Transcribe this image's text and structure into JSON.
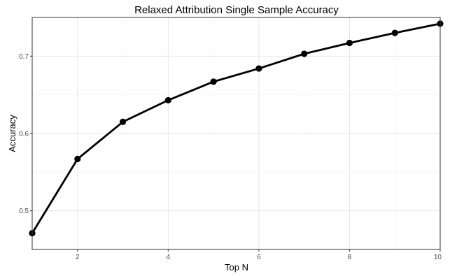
{
  "chart_data": {
    "type": "line",
    "title": "Relaxed Attribution Single Sample Accuracy",
    "xlabel": "Top N",
    "ylabel": "Accuracy",
    "x": [
      1,
      2,
      3,
      4,
      5,
      6,
      7,
      8,
      9,
      10
    ],
    "series": [
      {
        "values": [
          0.471,
          0.567,
          0.615,
          0.643,
          0.667,
          0.684,
          0.703,
          0.717,
          0.73,
          0.742
        ]
      }
    ],
    "xlim": [
      1,
      10
    ],
    "ylim": [
      0.45,
      0.75
    ],
    "xticks": [
      2,
      4,
      6,
      8,
      10
    ],
    "yticks": [
      0.5,
      0.6,
      0.7
    ],
    "xtick_labels": [
      "2",
      "4",
      "6",
      "8",
      "10"
    ],
    "ytick_labels": [
      "0.5",
      "0.6",
      "0.7"
    ],
    "grid": true,
    "legend": "none",
    "line_color": "#000000",
    "theme": "bw"
  }
}
